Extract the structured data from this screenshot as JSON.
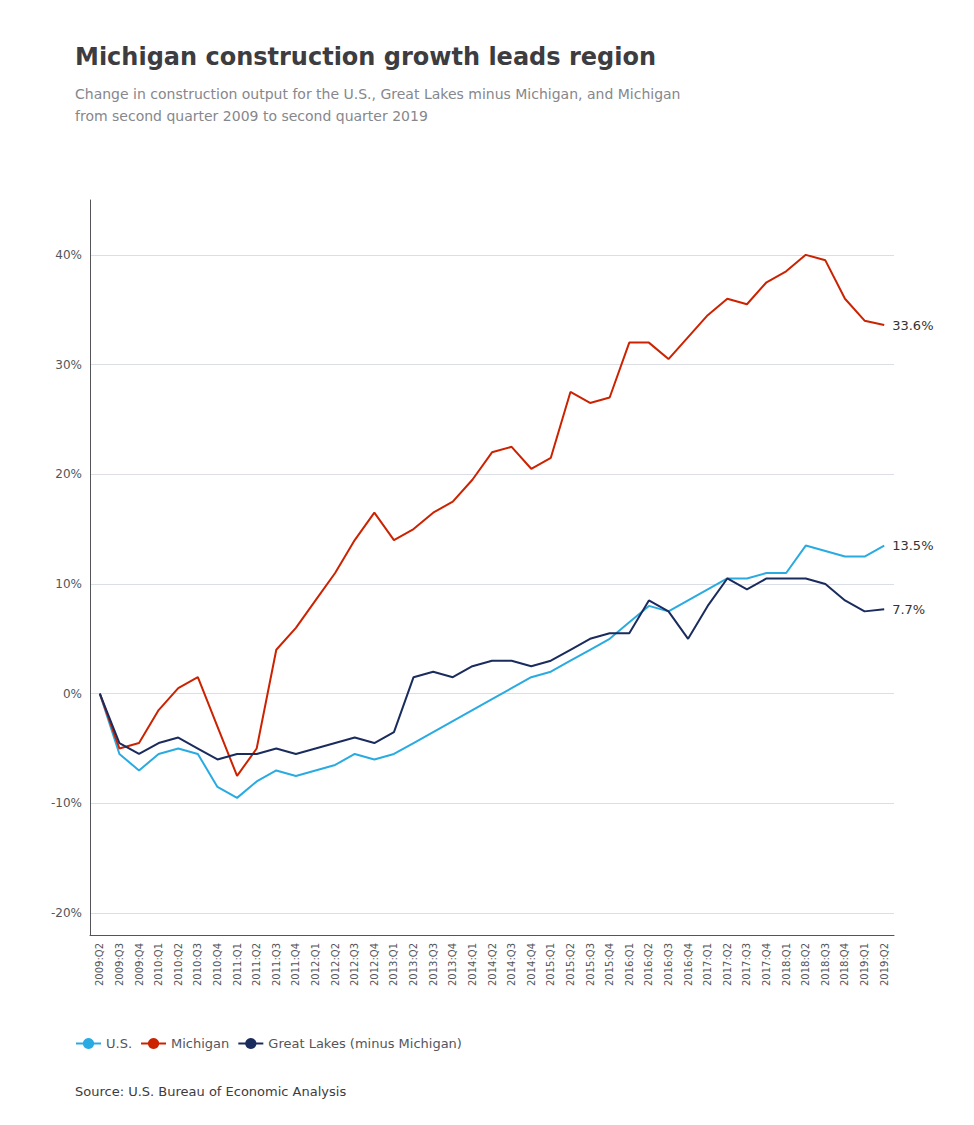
{
  "chart_data": {
    "type": "line",
    "title": "Michigan construction growth leads region",
    "subtitle": "Change in construction output for the U.S., Great Lakes minus Michigan, and Michigan\nfrom second quarter 2009 to second quarter 2019",
    "source": "Source: U.S. Bureau of Economic Analysis",
    "categories": [
      "2009:Q2",
      "2009:Q3",
      "2009:Q4",
      "2010:Q1",
      "2010:Q2",
      "2010:Q3",
      "2010:Q4",
      "2011:Q1",
      "2011:Q2",
      "2011:Q3",
      "2011:Q4",
      "2012:Q1",
      "2012:Q2",
      "2012:Q3",
      "2012:Q4",
      "2013:Q1",
      "2013:Q2",
      "2013:Q3",
      "2013:Q4",
      "2014:Q1",
      "2014:Q2",
      "2014:Q3",
      "2014:Q4",
      "2015:Q1",
      "2015:Q2",
      "2015:Q3",
      "2015:Q4",
      "2016:Q1",
      "2016:Q2",
      "2016:Q3",
      "2016:Q4",
      "2017:Q1",
      "2017:Q2",
      "2017:Q3",
      "2017:Q4",
      "2018:Q1",
      "2018:Q2",
      "2018:Q3",
      "2018:Q4",
      "2019:Q1",
      "2019:Q2"
    ],
    "series": [
      {
        "name": "U.S.",
        "color": "#29abe2",
        "values": [
          0.0,
          -5.5,
          -7.0,
          -5.5,
          -5.0,
          -5.5,
          -8.5,
          -9.5,
          -8.0,
          -7.0,
          -7.5,
          -7.0,
          -6.5,
          -5.5,
          -6.0,
          -5.5,
          -4.5,
          -3.5,
          -2.5,
          -1.5,
          -0.5,
          0.5,
          1.5,
          2.0,
          3.0,
          4.0,
          5.0,
          6.5,
          8.0,
          7.5,
          8.5,
          9.5,
          10.5,
          10.5,
          11.0,
          11.0,
          13.5,
          13.0,
          12.5,
          12.5,
          13.5
        ]
      },
      {
        "name": "Michigan",
        "color": "#cc2200",
        "values": [
          0.0,
          -5.0,
          -4.5,
          -1.5,
          0.5,
          1.5,
          -3.0,
          -7.5,
          -5.0,
          4.0,
          6.0,
          8.5,
          11.0,
          14.0,
          16.5,
          14.0,
          15.0,
          16.5,
          17.5,
          19.5,
          22.0,
          22.5,
          20.5,
          21.5,
          27.5,
          26.5,
          27.0,
          32.0,
          32.0,
          30.5,
          32.5,
          34.5,
          36.0,
          35.5,
          37.5,
          38.5,
          40.0,
          39.5,
          36.0,
          34.0,
          33.6
        ]
      },
      {
        "name": "Great Lakes (minus Michigan)",
        "color": "#1a2b5e",
        "values": [
          0.0,
          -4.5,
          -5.5,
          -4.5,
          -4.0,
          -5.0,
          -6.0,
          -5.5,
          -5.5,
          -5.0,
          -5.5,
          -5.0,
          -4.5,
          -4.0,
          -4.5,
          -3.5,
          1.5,
          2.0,
          1.5,
          2.5,
          3.0,
          3.0,
          2.5,
          3.0,
          4.0,
          5.0,
          5.5,
          5.5,
          8.5,
          7.5,
          5.0,
          8.0,
          10.5,
          9.5,
          10.5,
          10.5,
          10.5,
          10.0,
          8.5,
          7.5,
          7.7
        ]
      }
    ],
    "annotations": [
      {
        "text": "33.6%",
        "series": "Michigan"
      },
      {
        "text": "13.5%",
        "series": "U.S."
      },
      {
        "text": "7.7%",
        "series": "Great Lakes (minus Michigan)"
      }
    ],
    "ylim": [
      -22,
      45
    ],
    "yticks": [
      {
        "value": -20,
        "label": "-20%"
      },
      {
        "value": -10,
        "label": "-10%"
      },
      {
        "value": 0,
        "label": "0%"
      },
      {
        "value": 10,
        "label": "10%"
      },
      {
        "value": 20,
        "label": "20%"
      },
      {
        "value": 30,
        "label": "30%"
      },
      {
        "value": 40,
        "label": "40%"
      }
    ],
    "grid": true,
    "legend": "bottom"
  }
}
